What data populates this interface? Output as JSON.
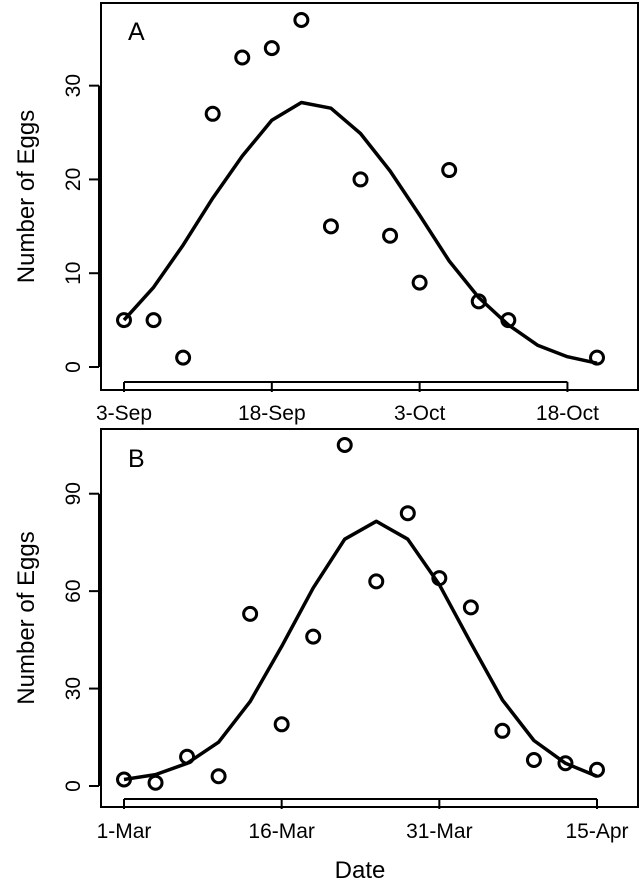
{
  "x_axis_label": "Date",
  "chart_data": [
    {
      "type": "scatter",
      "panel_label": "A",
      "ylabel": "Number of Eggs",
      "x_unit": "date",
      "ylim": [
        0,
        37
      ],
      "xlim": [
        "2000-09-03",
        "2000-10-21"
      ],
      "x_ticks": [
        {
          "value": "2000-09-03",
          "label": "3-Sep"
        },
        {
          "value": "2000-09-18",
          "label": "18-Sep"
        },
        {
          "value": "2000-10-03",
          "label": "3-Oct"
        },
        {
          "value": "2000-10-18",
          "label": "18-Oct"
        }
      ],
      "y_ticks": [
        0,
        10,
        20,
        30
      ],
      "grid": false,
      "series": [
        {
          "kind": "points",
          "x": [
            "2000-09-03",
            "2000-09-06",
            "2000-09-09",
            "2000-09-12",
            "2000-09-15",
            "2000-09-18",
            "2000-09-21",
            "2000-09-24",
            "2000-09-27",
            "2000-09-30",
            "2000-10-03",
            "2000-10-06",
            "2000-10-09",
            "2000-10-12",
            "2000-10-21"
          ],
          "y": [
            5,
            5,
            1,
            27,
            33,
            34,
            37,
            15,
            20,
            14,
            9,
            21,
            7,
            5,
            1
          ]
        },
        {
          "kind": "fitted-line",
          "x": [
            "2000-09-03",
            "2000-09-06",
            "2000-09-09",
            "2000-09-12",
            "2000-09-15",
            "2000-09-18",
            "2000-09-21",
            "2000-09-24",
            "2000-09-27",
            "2000-09-30",
            "2000-10-03",
            "2000-10-06",
            "2000-10-09",
            "2000-10-12",
            "2000-10-15",
            "2000-10-18",
            "2000-10-21"
          ],
          "y": [
            5,
            8.5,
            13,
            18,
            22.5,
            26.3,
            28.2,
            27.6,
            24.9,
            20.9,
            16.2,
            11.3,
            7.4,
            4.5,
            2.3,
            1.1,
            0.4
          ]
        }
      ]
    },
    {
      "type": "scatter",
      "panel_label": "B",
      "ylabel": "Number of Eggs",
      "xlabel": "Date",
      "x_unit": "date",
      "ylim": [
        0,
        105
      ],
      "xlim": [
        "2000-03-01",
        "2000-04-15"
      ],
      "x_ticks": [
        {
          "value": "2000-03-01",
          "label": "1-Mar"
        },
        {
          "value": "2000-03-16",
          "label": "16-Mar"
        },
        {
          "value": "2000-03-31",
          "label": "31-Mar"
        },
        {
          "value": "2000-04-15",
          "label": "15-Apr"
        }
      ],
      "y_ticks": [
        0,
        30,
        60,
        90
      ],
      "grid": false,
      "series": [
        {
          "kind": "points",
          "x": [
            "2000-03-01",
            "2000-03-04",
            "2000-03-07",
            "2000-03-10",
            "2000-03-13",
            "2000-03-16",
            "2000-03-19",
            "2000-03-22",
            "2000-03-25",
            "2000-03-28",
            "2000-03-31",
            "2000-04-03",
            "2000-04-06",
            "2000-04-09",
            "2000-04-12",
            "2000-04-15"
          ],
          "y": [
            2,
            1,
            9,
            3,
            53,
            19,
            46,
            105,
            63,
            84,
            64,
            55,
            17,
            8,
            7,
            5
          ]
        },
        {
          "kind": "fitted-line",
          "x": [
            "2000-03-01",
            "2000-03-04",
            "2000-03-07",
            "2000-03-10",
            "2000-03-13",
            "2000-03-16",
            "2000-03-19",
            "2000-03-22",
            "2000-03-25",
            "2000-03-28",
            "2000-03-31",
            "2000-04-03",
            "2000-04-06",
            "2000-04-09",
            "2000-04-12",
            "2000-04-15"
          ],
          "y": [
            2,
            3.5,
            7,
            13.5,
            26,
            43,
            61,
            76,
            81.5,
            76,
            62,
            44,
            26.5,
            14,
            7,
            3
          ]
        }
      ]
    }
  ]
}
